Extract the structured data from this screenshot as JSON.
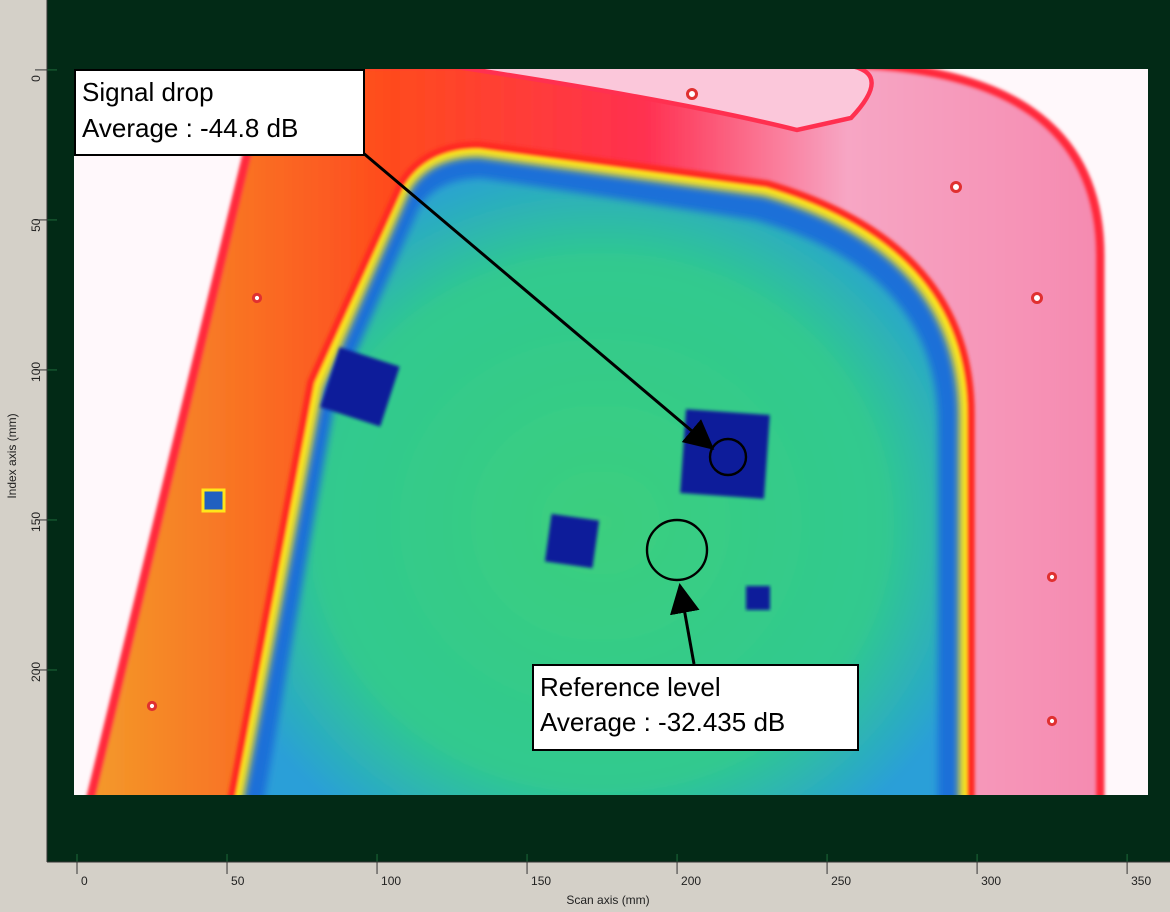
{
  "chart_data": {
    "type": "image",
    "xlabel": "Scan axis (mm)",
    "ylabel": "Index axis (mm)",
    "xlim": [
      -10,
      364.3
    ],
    "ylim": [
      -23.3,
      264
    ],
    "y_inverted": true,
    "xticks": [
      0,
      50,
      100,
      150,
      200,
      250,
      300,
      350
    ],
    "yticks": [
      0,
      50,
      100,
      150,
      200
    ],
    "annotations": [
      {
        "lines": [
          "Signal drop",
          "Average : -44.8 dB"
        ]
      },
      {
        "lines": [
          "Reference level",
          "Average : -32.435 dB"
        ]
      }
    ]
  }
}
